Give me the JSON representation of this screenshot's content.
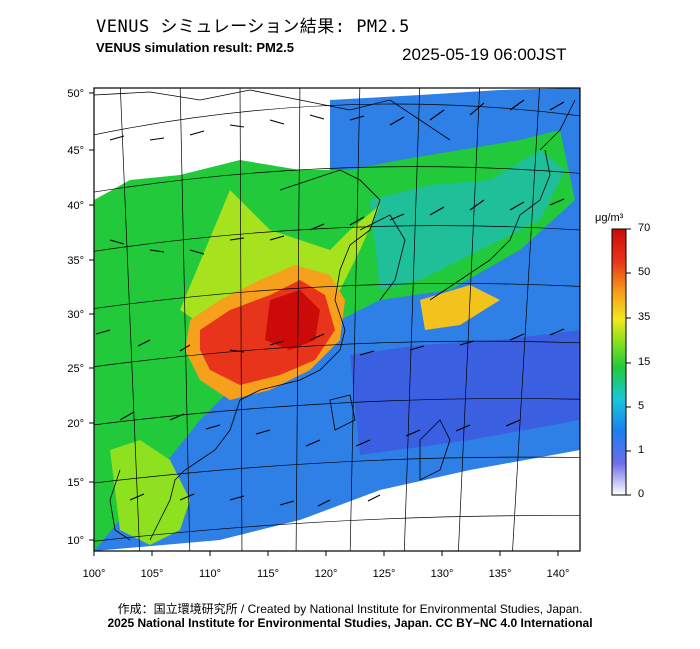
{
  "header": {
    "title_jp": "VENUS シミュレーション結果: PM2.5",
    "title_en": "VENUS simulation result: PM2.5",
    "timestamp": "2025-05-19 06:00JST"
  },
  "map": {
    "lon_ticks": [
      "100°",
      "105°",
      "110°",
      "115°",
      "120°",
      "125°",
      "130°",
      "135°",
      "140°"
    ],
    "lat_ticks": [
      "50°",
      "45°",
      "40°",
      "35°",
      "30°",
      "25°",
      "20°",
      "15°",
      "10°"
    ]
  },
  "colorbar": {
    "unit": "μg/m³",
    "labels": [
      "70",
      "50",
      "35",
      "15",
      "5",
      "1",
      "0"
    ],
    "colors": [
      "#ffffff",
      "#2b2bd8",
      "#1c7ff0",
      "#19c8d8",
      "#21c93b",
      "#8ee11e",
      "#f2e81d",
      "#f6a01c",
      "#e7341b",
      "#cc0a0a"
    ]
  },
  "footer": {
    "credit_line1": "作成：国立環境研究所 / Created by National Institute for Environmental Studies, Japan.",
    "credit_line2": "2025 National Institute for Environmental Studies, Japan. CC BY−NC 4.0 International"
  }
}
